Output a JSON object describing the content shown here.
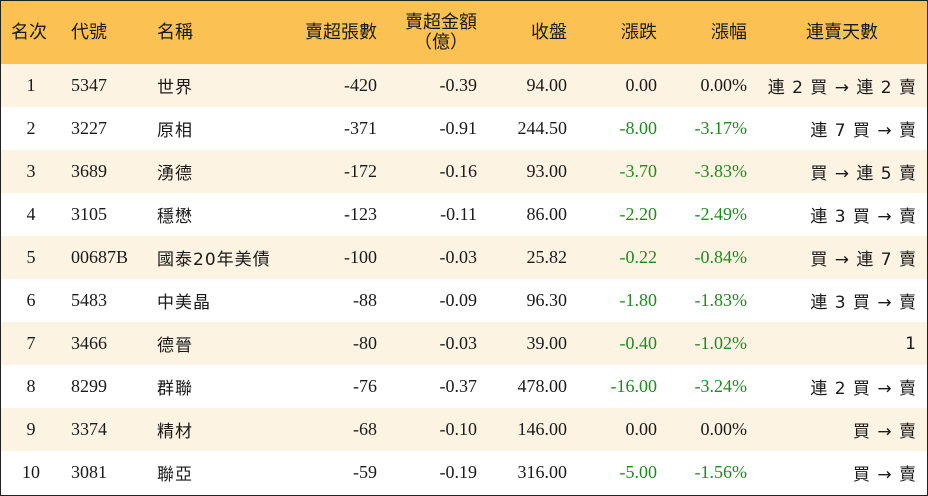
{
  "colors": {
    "header_bg": "#fbc152",
    "row_alt_bg": "#fdf3e2",
    "negative_change": "#1f8a1f"
  },
  "table": {
    "headers": {
      "rank": "名次",
      "code": "代號",
      "name": "名稱",
      "sell_lots": "賣超張數",
      "sell_amount_line1": "賣超金額",
      "sell_amount_line2": "（億）",
      "close": "收盤",
      "change": "漲跌",
      "change_pct": "漲幅",
      "streak": "連賣天數"
    },
    "rows": [
      {
        "rank": "1",
        "code": "5347",
        "name": "世界",
        "sell_lots": "-420",
        "sell_amount": "-0.39",
        "close": "94.00",
        "change": "0.00",
        "change_pct": "0.00%",
        "streak": "連 2 買 → 連 2 賣"
      },
      {
        "rank": "2",
        "code": "3227",
        "name": "原相",
        "sell_lots": "-371",
        "sell_amount": "-0.91",
        "close": "244.50",
        "change": "-8.00",
        "change_pct": "-3.17%",
        "streak": "連 7 買 → 賣"
      },
      {
        "rank": "3",
        "code": "3689",
        "name": "湧德",
        "sell_lots": "-172",
        "sell_amount": "-0.16",
        "close": "93.00",
        "change": "-3.70",
        "change_pct": "-3.83%",
        "streak": "買 → 連 5 賣"
      },
      {
        "rank": "4",
        "code": "3105",
        "name": "穩懋",
        "sell_lots": "-123",
        "sell_amount": "-0.11",
        "close": "86.00",
        "change": "-2.20",
        "change_pct": "-2.49%",
        "streak": "連 3 買 → 賣"
      },
      {
        "rank": "5",
        "code": "00687B",
        "name": "國泰20年美債",
        "sell_lots": "-100",
        "sell_amount": "-0.03",
        "close": "25.82",
        "change": "-0.22",
        "change_pct": "-0.84%",
        "streak": "買 → 連 7 賣"
      },
      {
        "rank": "6",
        "code": "5483",
        "name": "中美晶",
        "sell_lots": "-88",
        "sell_amount": "-0.09",
        "close": "96.30",
        "change": "-1.80",
        "change_pct": "-1.83%",
        "streak": "連 3 買 → 賣"
      },
      {
        "rank": "7",
        "code": "3466",
        "name": "德晉",
        "sell_lots": "-80",
        "sell_amount": "-0.03",
        "close": "39.00",
        "change": "-0.40",
        "change_pct": "-1.02%",
        "streak": "1"
      },
      {
        "rank": "8",
        "code": "8299",
        "name": "群聯",
        "sell_lots": "-76",
        "sell_amount": "-0.37",
        "close": "478.00",
        "change": "-16.00",
        "change_pct": "-3.24%",
        "streak": "連 2 買 → 賣"
      },
      {
        "rank": "9",
        "code": "3374",
        "name": "精材",
        "sell_lots": "-68",
        "sell_amount": "-0.10",
        "close": "146.00",
        "change": "0.00",
        "change_pct": "0.00%",
        "streak": "買 → 賣"
      },
      {
        "rank": "10",
        "code": "3081",
        "name": "聯亞",
        "sell_lots": "-59",
        "sell_amount": "-0.19",
        "close": "316.00",
        "change": "-5.00",
        "change_pct": "-1.56%",
        "streak": "買 → 賣"
      }
    ]
  }
}
